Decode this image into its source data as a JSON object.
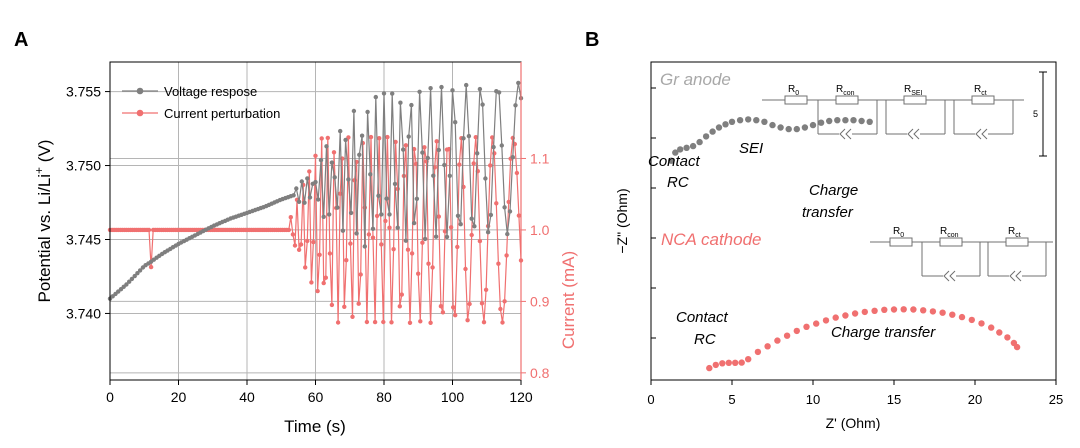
{
  "panels": {
    "a_label": "A",
    "b_label": "B"
  },
  "colors": {
    "voltage": "#7f7f7f",
    "current": "#f07070",
    "gr_text": "#a8a8a8",
    "nca_text": "#f07070",
    "circuit": "#707070"
  },
  "chart_data": [
    {
      "id": "A",
      "type": "line",
      "xlabel": "Time (s)",
      "xlim": [
        0,
        120
      ],
      "xticks": [
        0,
        20,
        40,
        60,
        80,
        100,
        120
      ],
      "left_axis": {
        "label_main": "Potential vs. Li/Li",
        "label_sup": "+",
        "label_unit": " (V)",
        "ylim": [
          3.7355,
          3.757
        ],
        "ticks": [
          "3.740",
          "3.745",
          "3.750",
          "3.755"
        ]
      },
      "right_axis": {
        "label": "Current (mA)",
        "ylim": [
          0.79,
          1.235
        ],
        "ticks": [
          "0.8",
          "0.9",
          "1.0",
          "1.1"
        ]
      },
      "grid": true,
      "legend_position": "top-left",
      "series": [
        {
          "name": "Voltage respose",
          "axis": "left",
          "color": "#7f7f7f",
          "description": "Voltage response: slow rise from 3.7410 V to ~3.748 V, then sinusoidal oscillation of growing amplitude (about 3.7465-3.7555 V) from ~55 s onward",
          "base_points": [
            [
              0,
              3.741
            ],
            [
              5,
              3.742
            ],
            [
              10,
              3.7432
            ],
            [
              12,
              3.7435
            ],
            [
              15,
              3.744
            ],
            [
              20,
              3.7447
            ],
            [
              25,
              3.7453
            ],
            [
              30,
              3.7459
            ],
            [
              35,
              3.7464
            ],
            [
              40,
              3.7468
            ],
            [
              45,
              3.7472
            ],
            [
              50,
              3.7477
            ],
            [
              55,
              3.7481
            ],
            [
              60,
              3.7486
            ],
            [
              70,
              3.7493
            ],
            [
              80,
              3.7498
            ],
            [
              90,
              3.7501
            ],
            [
              100,
              3.7503
            ],
            [
              110,
              3.7504
            ],
            [
              120,
              3.7505
            ]
          ]
        },
        {
          "name": "Current perturbation",
          "axis": "right",
          "color": "#f07070",
          "description": "Current perturbation: constant 1.0 mA with a brief dip to ~0.95 mA at ~12 s; from ~52 s a chirped sine of growing amplitude reaching 0.87-1.13 mA",
          "base_value": 1.0,
          "dip": {
            "t": 12,
            "value": 0.948
          }
        }
      ]
    },
    {
      "id": "B",
      "type": "scatter",
      "xlabel": "Z' (Ohm)",
      "ylabel": "−Z\" (Ohm)",
      "xlim": [
        0,
        25
      ],
      "xticks": [
        0,
        5,
        10,
        15,
        20,
        25
      ],
      "scale_bar_label": "5",
      "series": [
        {
          "name": "Gr anode",
          "color": "#7f7f7f",
          "points": [
            [
              1.25,
              4.4
            ],
            [
              1.5,
              4.9
            ],
            [
              1.8,
              5.1
            ],
            [
              2.2,
              5.2
            ],
            [
              2.6,
              5.3
            ],
            [
              3.0,
              5.55
            ],
            [
              3.4,
              5.9
            ],
            [
              3.8,
              6.2
            ],
            [
              4.2,
              6.45
            ],
            [
              4.6,
              6.65
            ],
            [
              5.0,
              6.8
            ],
            [
              5.5,
              6.9
            ],
            [
              6.0,
              6.95
            ],
            [
              6.5,
              6.9
            ],
            [
              7.0,
              6.8
            ],
            [
              7.5,
              6.6
            ],
            [
              8.0,
              6.45
            ],
            [
              8.5,
              6.35
            ],
            [
              9.0,
              6.35
            ],
            [
              9.5,
              6.45
            ],
            [
              10.0,
              6.6
            ],
            [
              10.5,
              6.75
            ],
            [
              11.0,
              6.85
            ],
            [
              11.5,
              6.9
            ],
            [
              12.0,
              6.9
            ],
            [
              12.5,
              6.9
            ],
            [
              13.0,
              6.85
            ],
            [
              13.5,
              6.8
            ]
          ]
        },
        {
          "name": "NCA cathode",
          "color": "#f07070",
          "points": [
            [
              3.6,
              0.3
            ],
            [
              4.0,
              0.5
            ],
            [
              4.4,
              0.6
            ],
            [
              4.8,
              0.63
            ],
            [
              5.2,
              0.63
            ],
            [
              5.6,
              0.64
            ],
            [
              6.0,
              0.85
            ],
            [
              6.6,
              1.3
            ],
            [
              7.2,
              1.65
            ],
            [
              7.8,
              2.0
            ],
            [
              8.4,
              2.3
            ],
            [
              9.0,
              2.6
            ],
            [
              9.6,
              2.85
            ],
            [
              10.2,
              3.05
            ],
            [
              10.8,
              3.25
            ],
            [
              11.4,
              3.42
            ],
            [
              12.0,
              3.55
            ],
            [
              12.6,
              3.67
            ],
            [
              13.2,
              3.77
            ],
            [
              13.8,
              3.84
            ],
            [
              14.4,
              3.9
            ],
            [
              15.0,
              3.92
            ],
            [
              15.6,
              3.93
            ],
            [
              16.2,
              3.92
            ],
            [
              16.8,
              3.87
            ],
            [
              17.4,
              3.8
            ],
            [
              18.0,
              3.72
            ],
            [
              18.6,
              3.6
            ],
            [
              19.2,
              3.45
            ],
            [
              19.8,
              3.28
            ],
            [
              20.4,
              3.06
            ],
            [
              21.0,
              2.8
            ],
            [
              21.5,
              2.5
            ],
            [
              22.0,
              2.2
            ],
            [
              22.4,
              1.85
            ],
            [
              22.6,
              1.6
            ]
          ]
        }
      ],
      "annotations": {
        "gr_title": "Gr anode",
        "nca_title": "NCA cathode",
        "gr_contact_1": "Contact",
        "gr_contact_2": "RC",
        "sei": "SEI",
        "gr_charge_1": "Charge",
        "gr_charge_2": "transfer",
        "nca_contact_1": "Contact",
        "nca_contact_2": "RC",
        "nca_charge": "Charge transfer"
      },
      "circuits": {
        "gr": {
          "r0": "R",
          "r0_sub": "0",
          "r1": "R",
          "r1_sub": "con",
          "r2": "R",
          "r2_sub": "SEI",
          "r3": "R",
          "r3_sub": "ct"
        },
        "nca": {
          "r0": "R",
          "r0_sub": "0",
          "r1": "R",
          "r1_sub": "con",
          "r2": "R",
          "r2_sub": "ct"
        }
      }
    }
  ]
}
